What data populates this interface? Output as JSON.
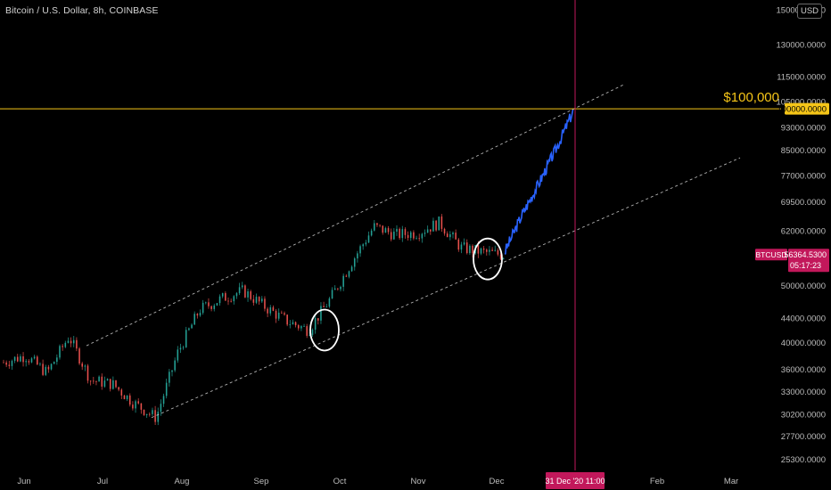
{
  "header": {
    "symbol_title": "Bitcoin / U.S. Dollar, 8h, COINBASE",
    "currency_button": "USD"
  },
  "colors": {
    "background": "#000000",
    "candle_up": "#26a69a",
    "candle_down": "#ef5350",
    "projection": "#2962ff",
    "target_line": "#f5c518",
    "vertical_marker": "#c2185b",
    "channel": "#d0d0d0",
    "ticker_badge": "#c2185b"
  },
  "chart_data": {
    "type": "candlestick",
    "price_axis": {
      "scale": "log",
      "ticks": [
        "150000.0000",
        "130000.0000",
        "115000.0000",
        "105000.0000",
        "100000.0000",
        "93000.0000",
        "85000.0000",
        "77000.0000",
        "69500.0000",
        "62000.0000",
        "56364.5300",
        "50000.0000",
        "44000.0000",
        "40000.0000",
        "36000.0000",
        "33000.0000",
        "30200.0000",
        "27700.0000",
        "25300.0000"
      ],
      "range": [
        25000,
        150000
      ]
    },
    "time_axis": {
      "labels": [
        "Jun",
        "Jul",
        "Aug",
        "Sep",
        "Oct",
        "Nov",
        "Dec",
        "Feb",
        "Mar"
      ],
      "highlight_label": "31 Dec '20  11:00"
    },
    "series": [
      {
        "kind": "candles",
        "monthly_path": [
          {
            "month": "Jun",
            "price": 37000
          },
          {
            "month": "Jun",
            "price": 38000
          },
          {
            "month": "Jun",
            "price": 35500
          },
          {
            "month": "Jun",
            "price": 41000
          },
          {
            "month": "Jul",
            "price": 34500
          },
          {
            "month": "Jul",
            "price": 34000
          },
          {
            "month": "Jul",
            "price": 31500
          },
          {
            "month": "Jul",
            "price": 29800
          },
          {
            "month": "Aug",
            "price": 38500
          },
          {
            "month": "Aug",
            "price": 45500
          },
          {
            "month": "Aug",
            "price": 47500
          },
          {
            "month": "Sep",
            "price": 49000
          },
          {
            "month": "Sep",
            "price": 46000
          },
          {
            "month": "Sep",
            "price": 43500
          },
          {
            "month": "Sep",
            "price": 42000
          },
          {
            "month": "Oct",
            "price": 47500
          },
          {
            "month": "Oct",
            "price": 55000
          },
          {
            "month": "Oct",
            "price": 63000
          },
          {
            "month": "Oct",
            "price": 61000
          },
          {
            "month": "Nov",
            "price": 61500
          },
          {
            "month": "Nov",
            "price": 64000
          },
          {
            "month": "Nov",
            "price": 58000
          },
          {
            "month": "Nov",
            "price": 57000
          },
          {
            "month": "Dec",
            "price": 56364
          }
        ]
      },
      {
        "kind": "projection",
        "path": [
          {
            "month": "Dec",
            "price": 57000
          },
          {
            "month": "Dec",
            "price": 66000
          },
          {
            "month": "Dec",
            "price": 75000
          },
          {
            "month": "Dec",
            "price": 86000
          },
          {
            "month": "Dec",
            "price": 100000
          }
        ]
      }
    ],
    "annotations": {
      "target_price_label": "$100,000",
      "target_price": 100000,
      "current_ticker": "BTCUSD",
      "current_price": "56364.5300",
      "countdown": "05:17:23",
      "circles": [
        {
          "month": "Sep",
          "price": 42000
        },
        {
          "month": "Nov",
          "price": 55500
        }
      ]
    },
    "grid": false,
    "legend": "top-left"
  }
}
